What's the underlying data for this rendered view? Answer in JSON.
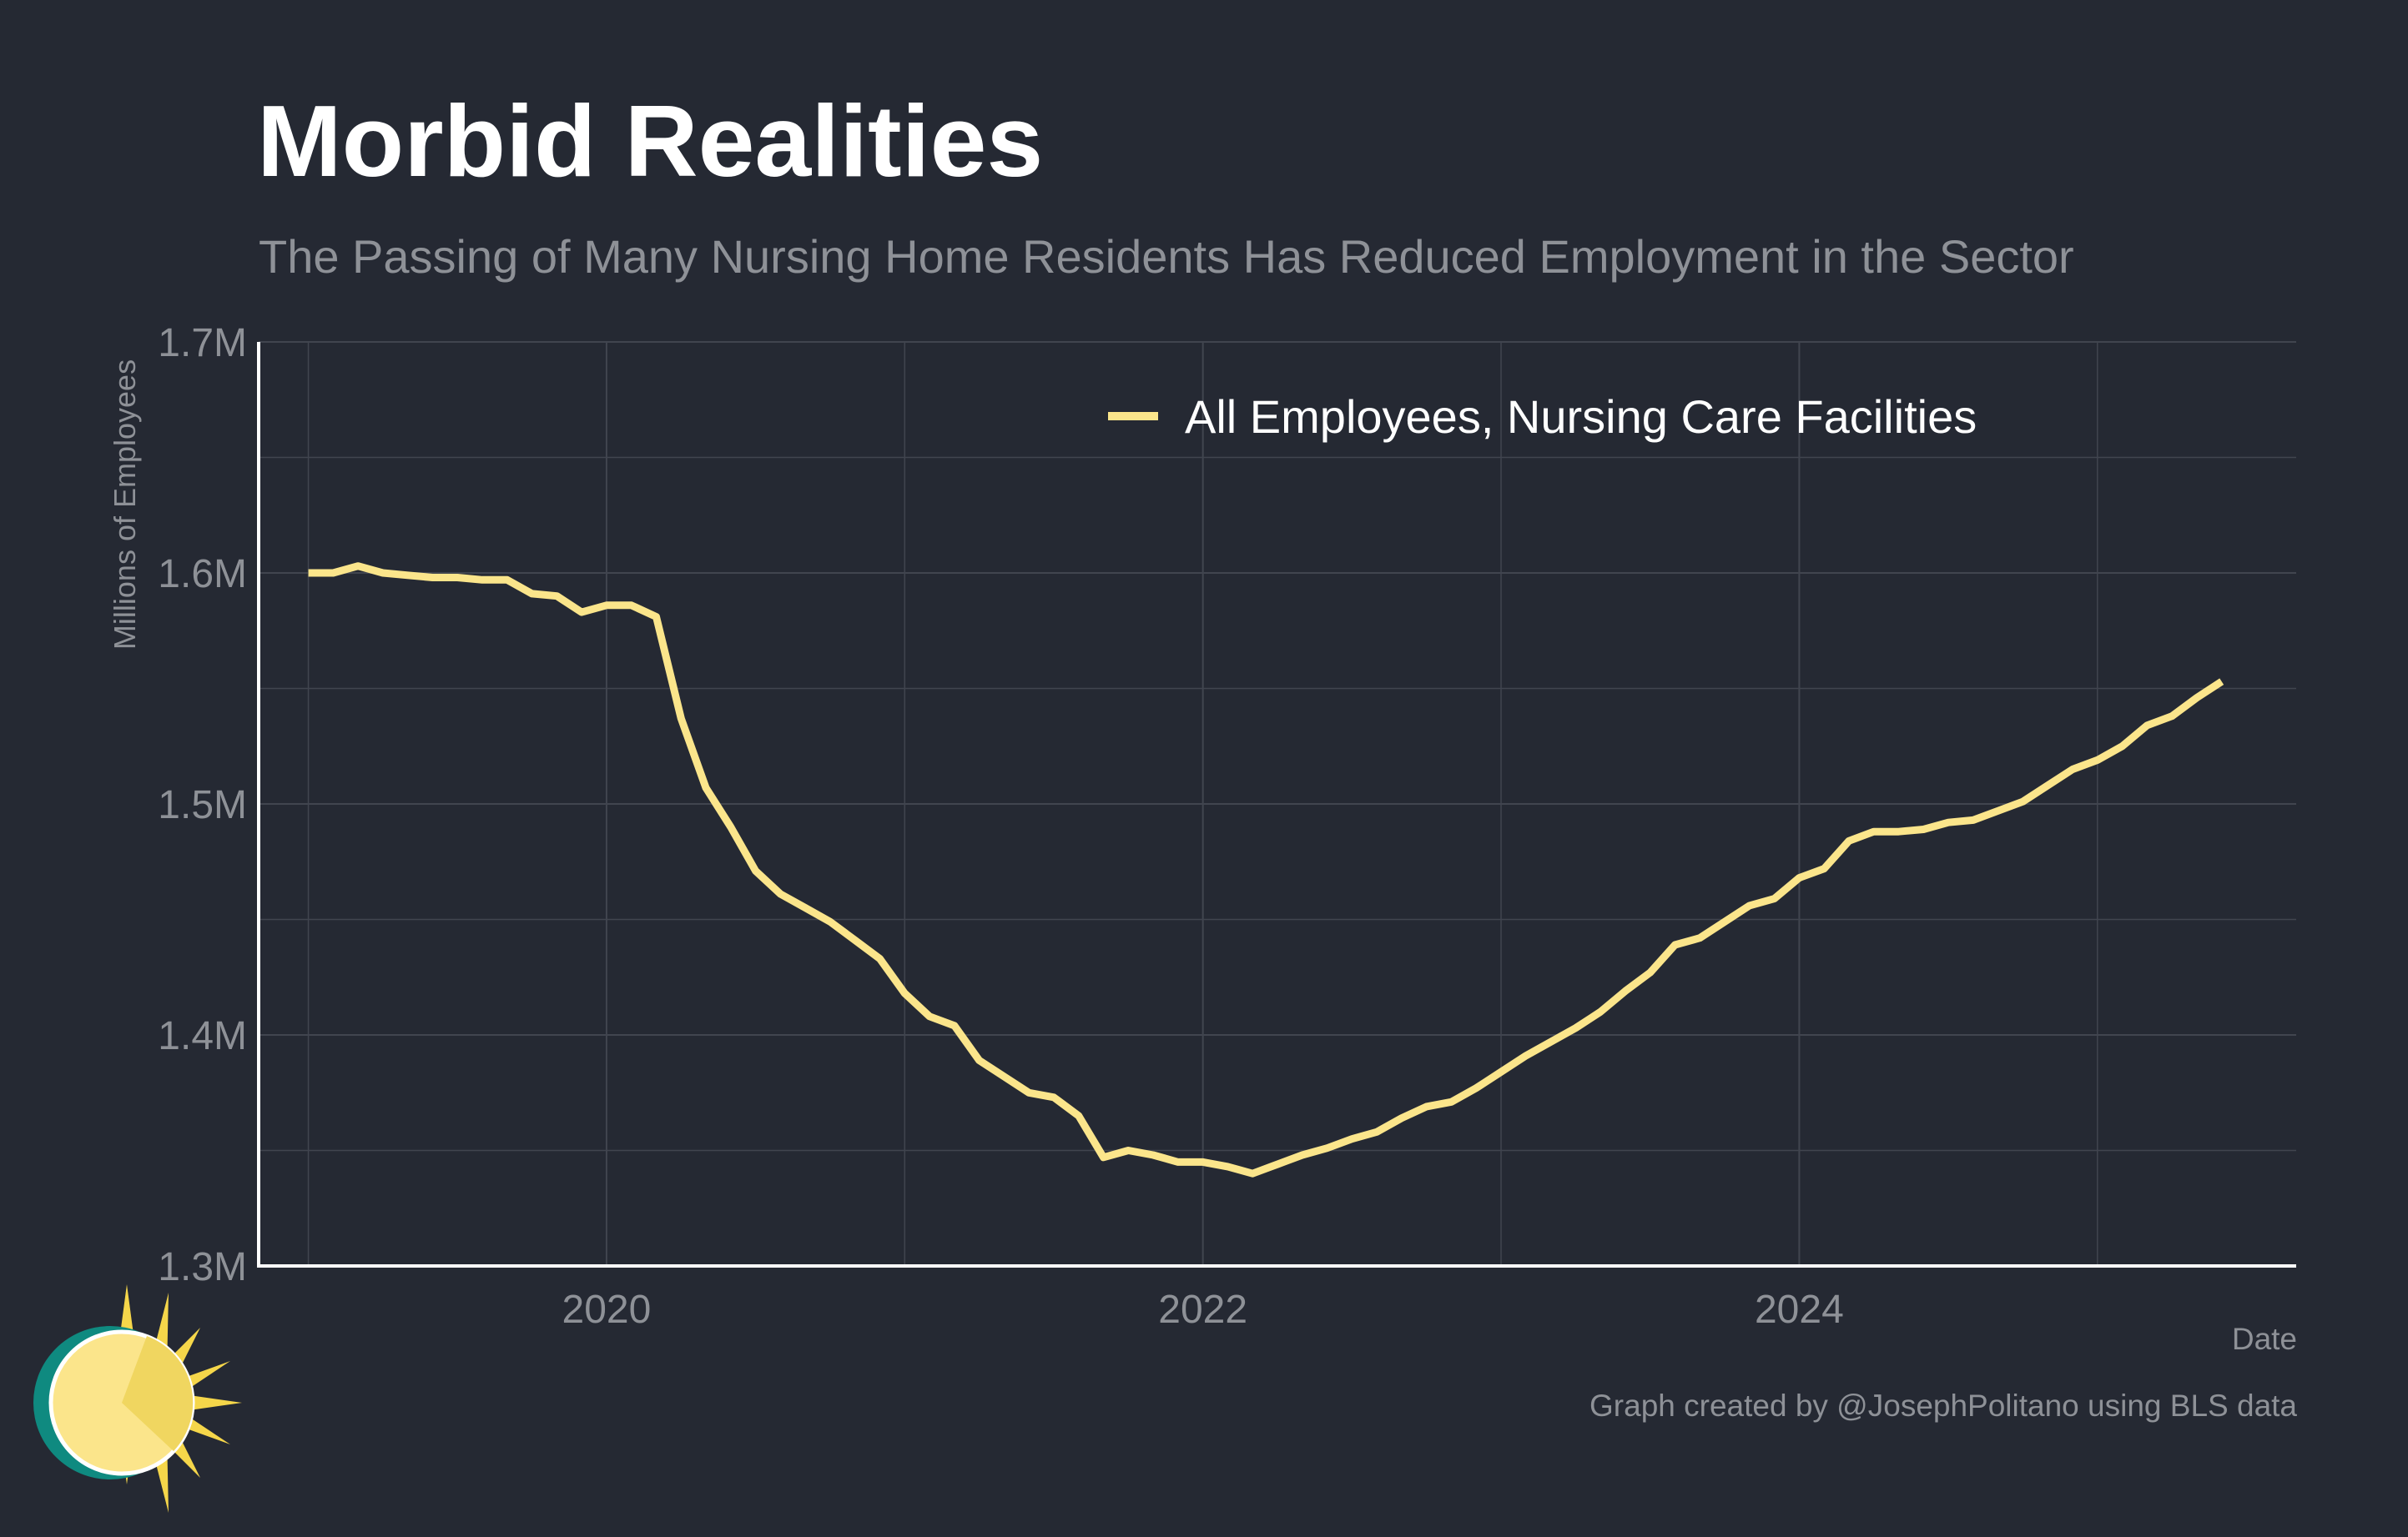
{
  "title": "Morbid Realities",
  "subtitle": "The Passing of Many Nursing Home Residents Has Reduced Employment in the Sector",
  "ylabel": "Millions of Employees",
  "xlabel": "Date",
  "credit": "Graph created by @JosephPolitano using BLS data",
  "colors": {
    "background": "#252933",
    "line": "#fbe58b",
    "grid": "#41454f",
    "axis": "#ffffff",
    "text_muted": "#8e9197"
  },
  "chart_data": {
    "type": "line",
    "title": "Morbid Realities",
    "subtitle": "The Passing of Many Nursing Home Residents Has Reduced Employment in the Sector",
    "xlabel": "Date",
    "ylabel": "Millions of Employees",
    "ylim": [
      1.3,
      1.7
    ],
    "xlim": [
      "2018-11",
      "2025-09"
    ],
    "yticks": [
      1.3,
      1.4,
      1.5,
      1.6,
      1.7
    ],
    "ytick_labels": [
      "1.3M",
      "1.4M",
      "1.5M",
      "1.6M",
      "1.7M"
    ],
    "xticks": [
      "2020-01",
      "2022-01",
      "2024-01"
    ],
    "xtick_labels": [
      "2020",
      "2022",
      "2024"
    ],
    "grid": true,
    "legend_position": "top-right",
    "series": [
      {
        "name": "All Employees, Nursing Care Facilities",
        "color": "#fbe58b",
        "x": [
          "2019-01",
          "2019-02",
          "2019-03",
          "2019-04",
          "2019-05",
          "2019-06",
          "2019-07",
          "2019-08",
          "2019-09",
          "2019-10",
          "2019-11",
          "2019-12",
          "2020-01",
          "2020-02",
          "2020-03",
          "2020-04",
          "2020-05",
          "2020-06",
          "2020-07",
          "2020-08",
          "2020-09",
          "2020-10",
          "2020-11",
          "2020-12",
          "2021-01",
          "2021-02",
          "2021-03",
          "2021-04",
          "2021-05",
          "2021-06",
          "2021-07",
          "2021-08",
          "2021-09",
          "2021-10",
          "2021-11",
          "2021-12",
          "2022-01",
          "2022-02",
          "2022-03",
          "2022-04",
          "2022-05",
          "2022-06",
          "2022-07",
          "2022-08",
          "2022-09",
          "2022-10",
          "2022-11",
          "2022-12",
          "2023-01",
          "2023-02",
          "2023-03",
          "2023-04",
          "2023-05",
          "2023-06",
          "2023-07",
          "2023-08",
          "2023-09",
          "2023-10",
          "2023-11",
          "2023-12",
          "2024-01",
          "2024-02",
          "2024-03",
          "2024-04",
          "2024-05",
          "2024-06",
          "2024-07",
          "2024-08",
          "2024-09",
          "2024-10",
          "2024-11",
          "2024-12",
          "2025-01",
          "2025-02",
          "2025-03",
          "2025-04",
          "2025-05",
          "2025-06"
        ],
        "values": [
          1.6,
          1.6,
          1.603,
          1.6,
          1.599,
          1.598,
          1.598,
          1.597,
          1.597,
          1.591,
          1.59,
          1.583,
          1.586,
          1.586,
          1.581,
          1.537,
          1.507,
          1.49,
          1.471,
          1.461,
          1.455,
          1.449,
          1.441,
          1.433,
          1.418,
          1.408,
          1.404,
          1.389,
          1.382,
          1.375,
          1.373,
          1.365,
          1.347,
          1.35,
          1.348,
          1.345,
          1.345,
          1.343,
          1.34,
          1.344,
          1.348,
          1.351,
          1.355,
          1.358,
          1.364,
          1.369,
          1.371,
          1.377,
          1.384,
          1.391,
          1.397,
          1.403,
          1.41,
          1.419,
          1.427,
          1.439,
          1.442,
          1.449,
          1.456,
          1.459,
          1.468,
          1.472,
          1.484,
          1.488,
          1.488,
          1.489,
          1.492,
          1.493,
          1.497,
          1.501,
          1.508,
          1.515,
          1.519,
          1.525,
          1.534,
          1.538,
          1.546,
          1.553
        ]
      }
    ]
  }
}
